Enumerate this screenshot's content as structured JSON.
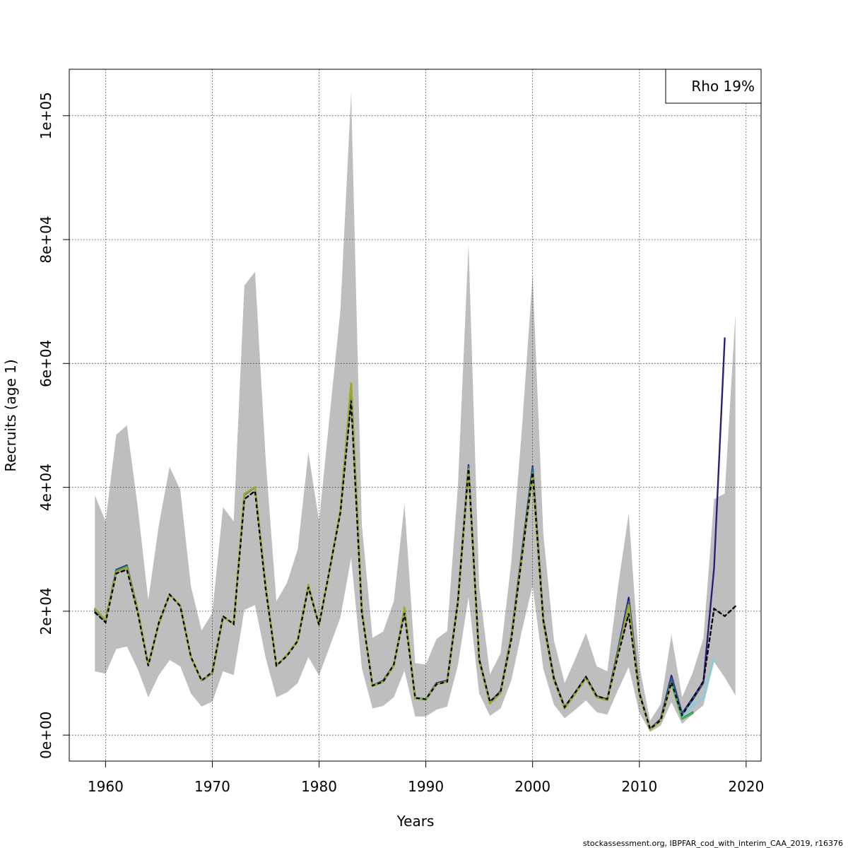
{
  "chart_data": {
    "type": "line",
    "xlabel": "Years",
    "ylabel": "Recruits (age 1)",
    "xlim": [
      1956.6,
      2021.4
    ],
    "ylim": [
      -4200,
      107500
    ],
    "x_ticks": [
      1960,
      1970,
      1980,
      1990,
      2000,
      2010,
      2020
    ],
    "y_ticks": [
      0,
      20000,
      40000,
      60000,
      80000,
      100000
    ],
    "y_tick_labels": [
      "0e+00",
      "2e+04",
      "4e+04",
      "6e+04",
      "8e+04",
      "1e+05"
    ],
    "grid": true,
    "legend": {
      "position": "top-right",
      "label": "Rho 19%"
    },
    "caption": "stockassessment.org, IBPFAR_cod_with_interim_CAA_2019, r16376",
    "confidence_band": {
      "color": "#bebebe",
      "x": [
        1959,
        1960,
        1961,
        1962,
        1963,
        1964,
        1965,
        1966,
        1967,
        1968,
        1969,
        1970,
        1971,
        1972,
        1973,
        1974,
        1975,
        1976,
        1977,
        1978,
        1979,
        1980,
        1981,
        1982,
        1983,
        1984,
        1985,
        1986,
        1987,
        1988,
        1989,
        1990,
        1991,
        1992,
        1993,
        1994,
        1995,
        1996,
        1997,
        1998,
        1999,
        2000,
        2001,
        2002,
        2003,
        2004,
        2005,
        2006,
        2007,
        2008,
        2009,
        2010,
        2011,
        2012,
        2013,
        2014,
        2015,
        2016,
        2017,
        2018,
        2019
      ],
      "upper": [
        38700,
        34500,
        48500,
        50000,
        37000,
        21800,
        34000,
        43300,
        39600,
        24000,
        16900,
        19700,
        36800,
        34500,
        72600,
        74800,
        44400,
        21600,
        24600,
        30000,
        45600,
        34500,
        51700,
        68600,
        103700,
        34000,
        15700,
        16700,
        21600,
        37300,
        11600,
        11400,
        15500,
        16800,
        40000,
        79300,
        24000,
        9800,
        13200,
        27900,
        49500,
        74200,
        32500,
        15300,
        8400,
        12300,
        16500,
        11100,
        10300,
        24000,
        35800,
        11200,
        2300,
        5000,
        16200,
        6100,
        10100,
        15600,
        38100,
        39000,
        68000
      ],
      "lower": [
        10300,
        9900,
        13900,
        14300,
        10700,
        6100,
        9700,
        12100,
        11100,
        6700,
        4600,
        5400,
        10300,
        9700,
        20200,
        21000,
        12400,
        6100,
        6900,
        8400,
        12600,
        9600,
        14300,
        19000,
        28600,
        10800,
        4300,
        4700,
        6100,
        10400,
        3000,
        3000,
        4100,
        4600,
        11200,
        22300,
        6700,
        3100,
        4300,
        8800,
        16900,
        24100,
        10700,
        4900,
        2700,
        4100,
        5600,
        3700,
        3300,
        7300,
        11000,
        3600,
        500,
        1500,
        5300,
        1800,
        3400,
        4800,
        11800,
        9300,
        6400
      ]
    },
    "series": [
      {
        "color": "#000000",
        "dashed": true,
        "x": [
          1959,
          1960,
          1961,
          1962,
          1963,
          1964,
          1965,
          1966,
          1967,
          1968,
          1969,
          1970,
          1971,
          1972,
          1973,
          1974,
          1975,
          1976,
          1977,
          1978,
          1979,
          1980,
          1981,
          1982,
          1983,
          1984,
          1985,
          1986,
          1987,
          1988,
          1989,
          1990,
          1991,
          1992,
          1993,
          1994,
          1995,
          1996,
          1997,
          1998,
          1999,
          2000,
          2001,
          2002,
          2003,
          2004,
          2005,
          2006,
          2007,
          2008,
          2009,
          2010,
          2011,
          2012,
          2013,
          2014,
          2015,
          2016,
          2017,
          2018,
          2019
        ],
        "values": [
          19800,
          18200,
          26100,
          26700,
          19900,
          11200,
          18200,
          22700,
          20800,
          12600,
          8800,
          10200,
          19200,
          17900,
          38100,
          39400,
          23600,
          11200,
          12800,
          15200,
          23900,
          17800,
          26800,
          35900,
          54000,
          19800,
          8000,
          8600,
          11400,
          19700,
          6000,
          5800,
          8200,
          8600,
          21400,
          43000,
          12200,
          5400,
          7000,
          15400,
          28800,
          42400,
          18500,
          9000,
          4500,
          6900,
          9400,
          6300,
          5800,
          12900,
          19600,
          6700,
          1000,
          2400,
          8500,
          3200,
          5900,
          8700,
          20400,
          19200,
          20800
        ]
      },
      {
        "color": "#2b1e7a",
        "dashed": false,
        "x": [
          1959,
          1960,
          1961,
          1962,
          1963,
          1964,
          1965,
          1966,
          1967,
          1968,
          1969,
          1970,
          1971,
          1972,
          1973,
          1974,
          1975,
          1976,
          1977,
          1978,
          1979,
          1980,
          1981,
          1982,
          1983,
          1984,
          1985,
          1986,
          1987,
          1988,
          1989,
          1990,
          1991,
          1992,
          1993,
          1994,
          1995,
          1996,
          1997,
          1998,
          1999,
          2000,
          2001,
          2002,
          2003,
          2004,
          2005,
          2006,
          2007,
          2008,
          2009,
          2010,
          2011,
          2012,
          2013,
          2014,
          2015,
          2016,
          2017,
          2018
        ],
        "values": [
          20100,
          18500,
          26700,
          27400,
          20300,
          11300,
          18000,
          22700,
          20900,
          12600,
          8800,
          10000,
          19000,
          18000,
          38800,
          40000,
          24000,
          11200,
          12900,
          15300,
          24200,
          17700,
          26800,
          36200,
          56600,
          20200,
          8000,
          8800,
          11300,
          20400,
          6000,
          5800,
          8400,
          8800,
          21600,
          43600,
          12300,
          5300,
          7100,
          15900,
          29600,
          43400,
          18700,
          9200,
          4500,
          6900,
          9400,
          6300,
          5800,
          13800,
          22200,
          6900,
          1000,
          2600,
          9600,
          3500,
          6000,
          8600,
          27000,
          64100
        ]
      },
      {
        "color": "#2e5e91",
        "dashed": false,
        "x": [
          1959,
          1960,
          1961,
          1962,
          1963,
          1964,
          1965,
          1966,
          1967,
          1968,
          1969,
          1970,
          1971,
          1972,
          1973,
          1974,
          1975,
          1976,
          1977,
          1978,
          1979,
          1980,
          1981,
          1982,
          1983,
          1984,
          1985,
          1986,
          1987,
          1988,
          1989,
          1990,
          1991,
          1992,
          1993,
          1994,
          1995,
          1996,
          1997,
          1998,
          1999,
          2000,
          2001,
          2002,
          2003,
          2004,
          2005,
          2006,
          2007,
          2008,
          2009,
          2010,
          2011,
          2012,
          2013,
          2014,
          2015,
          2016
        ],
        "values": [
          20200,
          18500,
          26600,
          27300,
          20200,
          11300,
          18000,
          22700,
          20900,
          12600,
          8800,
          10000,
          19000,
          18000,
          38800,
          40000,
          24000,
          11200,
          12900,
          15300,
          24100,
          17700,
          26800,
          36200,
          56500,
          20200,
          8000,
          8700,
          11300,
          20300,
          6000,
          5800,
          8300,
          8700,
          21500,
          43400,
          12200,
          5300,
          7000,
          15800,
          29400,
          43200,
          18600,
          9100,
          4500,
          6800,
          9300,
          6200,
          5700,
          13600,
          21600,
          6800,
          1000,
          2500,
          9200,
          3400,
          5700,
          8400
        ]
      },
      {
        "color": "#2a8b8c",
        "dashed": false,
        "x": [
          1959,
          1960,
          1961,
          1962,
          1963,
          1964,
          1965,
          1966,
          1967,
          1968,
          1969,
          1970,
          1971,
          1972,
          1973,
          1974,
          1975,
          1976,
          1977,
          1978,
          1979,
          1980,
          1981,
          1982,
          1983,
          1984,
          1985,
          1986,
          1987,
          1988,
          1989,
          1990,
          1991,
          1992,
          1993,
          1994,
          1995,
          1996,
          1997,
          1998,
          1999,
          2000,
          2001,
          2002,
          2003,
          2004,
          2005,
          2006,
          2007,
          2008,
          2009,
          2010,
          2011,
          2012,
          2013,
          2014,
          2015
        ],
        "values": [
          20200,
          18500,
          26500,
          27200,
          20200,
          11300,
          18000,
          22700,
          20900,
          12600,
          8800,
          10000,
          19000,
          18000,
          38900,
          40000,
          24000,
          11200,
          12900,
          15300,
          24200,
          17700,
          26800,
          36200,
          56700,
          20200,
          7900,
          8600,
          11200,
          20300,
          5900,
          5700,
          8200,
          8600,
          21300,
          43000,
          12000,
          5100,
          6800,
          15600,
          28900,
          42400,
          18200,
          8900,
          4300,
          6700,
          9200,
          6100,
          5600,
          13200,
          21000,
          6600,
          900,
          2300,
          8500,
          2700,
          3700
        ]
      },
      {
        "color": "#4caf50",
        "dashed": false,
        "x": [
          1959,
          1960,
          1961,
          1962,
          1963,
          1964,
          1965,
          1966,
          1967,
          1968,
          1969,
          1970,
          1971,
          1972,
          1973,
          1974,
          1975,
          1976,
          1977,
          1978,
          1979,
          1980,
          1981,
          1982,
          1983,
          1984,
          1985,
          1986,
          1987,
          1988,
          1989,
          1990,
          1991,
          1992,
          1993,
          1994,
          1995,
          1996,
          1997,
          1998,
          1999,
          2000,
          2001,
          2002,
          2003,
          2004,
          2005,
          2006,
          2007,
          2008,
          2009,
          2010,
          2011,
          2012,
          2013,
          2014,
          2015
        ],
        "values": [
          20400,
          18600,
          26400,
          27100,
          20200,
          11300,
          18000,
          22700,
          20900,
          12600,
          8800,
          10100,
          19000,
          18000,
          38900,
          40000,
          24000,
          11200,
          12900,
          15300,
          24200,
          17700,
          26800,
          36200,
          56800,
          20200,
          7900,
          8600,
          11200,
          20300,
          5900,
          5700,
          8200,
          8600,
          21300,
          43000,
          12000,
          5100,
          6800,
          15600,
          28900,
          42300,
          18200,
          8900,
          4300,
          6700,
          9200,
          6100,
          5600,
          13200,
          21000,
          6600,
          900,
          2300,
          8400,
          2600,
          3500
        ]
      },
      {
        "color": "#7dcfe6",
        "dashed": false,
        "x": [
          2014,
          2015,
          2016,
          2017
        ],
        "values": [
          3000,
          4800,
          6000,
          12400
        ]
      },
      {
        "color": "#a2a626",
        "dashed": false,
        "x": [
          1959,
          1960,
          1961,
          1962,
          1963,
          1964,
          1965,
          1966,
          1967,
          1968,
          1969,
          1970,
          1971,
          1972,
          1973,
          1974,
          1975,
          1976,
          1977,
          1978,
          1979,
          1980,
          1981,
          1982,
          1983,
          1984,
          1985,
          1986,
          1987,
          1988,
          1989,
          1990,
          1991,
          1992,
          1993,
          1994,
          1995,
          1996,
          1997,
          1998,
          1999,
          2000,
          2001,
          2002,
          2003,
          2004,
          2005,
          2006,
          2007,
          2008,
          2009,
          2010,
          2011,
          2012,
          2013
        ],
        "values": [
          20300,
          18600,
          26300,
          27000,
          20200,
          11300,
          18000,
          22700,
          20900,
          12600,
          8800,
          10100,
          19000,
          18000,
          39000,
          40000,
          24000,
          11200,
          12900,
          15300,
          24300,
          17700,
          26800,
          36200,
          56800,
          20200,
          8000,
          8600,
          11200,
          20600,
          5900,
          5800,
          8200,
          8600,
          21300,
          42900,
          12000,
          5100,
          6800,
          15600,
          28800,
          42100,
          18200,
          8900,
          4300,
          6700,
          9200,
          6100,
          5600,
          13100,
          21000,
          6500,
          900,
          2300,
          8300
        ]
      }
    ]
  }
}
